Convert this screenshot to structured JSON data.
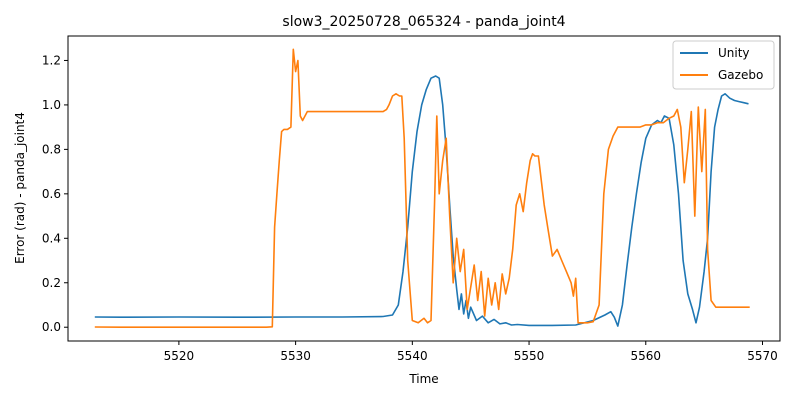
{
  "chart_data": {
    "type": "line",
    "title": "slow3_20250728_065324 - panda_joint4",
    "xlabel": "Time",
    "ylabel": "Error (rad) - panda_joint4",
    "xlim": [
      5510.5,
      5571.5
    ],
    "ylim": [
      -0.062,
      1.31
    ],
    "xticks": [
      5520,
      5530,
      5540,
      5550,
      5560,
      5570
    ],
    "yticks": [
      0.0,
      0.2,
      0.4,
      0.6,
      0.8,
      1.0,
      1.2
    ],
    "xtick_labels": [
      "5520",
      "5530",
      "5540",
      "5550",
      "5560",
      "5570"
    ],
    "ytick_labels": [
      "0.0",
      "0.2",
      "0.4",
      "0.6",
      "0.8",
      "1.0",
      "1.2"
    ],
    "grid": false,
    "legend": "top-right",
    "series": [
      {
        "name": "Unity",
        "color": "#1f77b4",
        "x": [
          5512.8,
          5515,
          5520,
          5525,
          5530,
          5534,
          5537.5,
          5538.3,
          5538.8,
          5539.2,
          5539.6,
          5540.0,
          5540.4,
          5540.8,
          5541.2,
          5541.6,
          5542.0,
          5542.3,
          5542.6,
          5542.9,
          5543.2,
          5543.5,
          5543.8,
          5544.0,
          5544.2,
          5544.4,
          5544.6,
          5544.8,
          5545.0,
          5545.5,
          5546.0,
          5546.5,
          5547.0,
          5547.5,
          5548.0,
          5548.5,
          5549.0,
          5550,
          5552,
          5554,
          5555.5,
          5556.5,
          5557.0,
          5557.3,
          5557.6,
          5558.0,
          5558.4,
          5558.8,
          5559.2,
          5559.6,
          5560.0,
          5560.5,
          5561.0,
          5561.3,
          5561.6,
          5562.0,
          5562.4,
          5562.8,
          5563.2,
          5563.6,
          5564.0,
          5564.3,
          5564.6,
          5565.0,
          5565.3,
          5565.6,
          5565.9,
          5566.2,
          5566.5,
          5566.8,
          5567.2,
          5567.6,
          5568.0,
          5568.4,
          5568.8
        ],
        "y": [
          0.046,
          0.045,
          0.046,
          0.045,
          0.046,
          0.046,
          0.048,
          0.055,
          0.1,
          0.25,
          0.45,
          0.7,
          0.88,
          1.0,
          1.07,
          1.12,
          1.13,
          1.12,
          1.0,
          0.8,
          0.55,
          0.32,
          0.17,
          0.08,
          0.15,
          0.06,
          0.12,
          0.04,
          0.09,
          0.03,
          0.05,
          0.02,
          0.035,
          0.015,
          0.02,
          0.01,
          0.012,
          0.008,
          0.008,
          0.01,
          0.03,
          0.055,
          0.07,
          0.045,
          0.005,
          0.1,
          0.28,
          0.45,
          0.6,
          0.74,
          0.85,
          0.91,
          0.93,
          0.92,
          0.95,
          0.94,
          0.82,
          0.6,
          0.3,
          0.15,
          0.08,
          0.02,
          0.09,
          0.25,
          0.4,
          0.7,
          0.9,
          0.98,
          1.04,
          1.05,
          1.03,
          1.02,
          1.015,
          1.01,
          1.005
        ]
      },
      {
        "name": "Gazebo",
        "color": "#ff7f0e",
        "x": [
          5512.8,
          5515,
          5520,
          5525,
          5527.5,
          5528.0,
          5528.2,
          5528.4,
          5528.6,
          5528.8,
          5529.0,
          5529.3,
          5529.6,
          5529.8,
          5530.0,
          5530.2,
          5530.4,
          5530.6,
          5531,
          5533,
          5536,
          5537.5,
          5537.8,
          5538.0,
          5538.3,
          5538.6,
          5538.9,
          5539.1,
          5539.3,
          5539.6,
          5540.0,
          5540.5,
          5541.0,
          5541.3,
          5541.6,
          5541.9,
          5542.1,
          5542.3,
          5542.6,
          5542.9,
          5543.2,
          5543.5,
          5543.8,
          5544.1,
          5544.4,
          5544.7,
          5545.0,
          5545.3,
          5545.6,
          5545.9,
          5546.2,
          5546.5,
          5546.8,
          5547.1,
          5547.4,
          5547.7,
          5548.0,
          5548.3,
          5548.6,
          5548.9,
          5549.2,
          5549.5,
          5549.8,
          5550.1,
          5550.3,
          5550.5,
          5550.8,
          5551.3,
          5551.6,
          5552.0,
          5552.4,
          5552.8,
          5553.2,
          5553.6,
          5553.8,
          5554.0,
          5554.2,
          5554.6,
          5555.0,
          5555.5,
          5556.0,
          5556.4,
          5556.8,
          5557.2,
          5557.6,
          5558.0,
          5558.5,
          5559.0,
          5559.5,
          5560.0,
          5560.5,
          5561.0,
          5561.5,
          5562.0,
          5562.4,
          5562.7,
          5563.0,
          5563.3,
          5563.6,
          5563.9,
          5564.2,
          5564.5,
          5564.8,
          5565.1,
          5565.3,
          5565.6,
          5566,
          5567,
          5568,
          5568.9
        ],
        "y": [
          0.001,
          0.0,
          0.0,
          0.0,
          0.0,
          0.002,
          0.45,
          0.6,
          0.75,
          0.88,
          0.89,
          0.89,
          0.9,
          1.25,
          1.15,
          1.2,
          0.95,
          0.93,
          0.97,
          0.97,
          0.97,
          0.97,
          0.98,
          1.0,
          1.04,
          1.05,
          1.04,
          1.04,
          0.85,
          0.3,
          0.03,
          0.02,
          0.04,
          0.02,
          0.03,
          0.55,
          0.95,
          0.6,
          0.75,
          0.85,
          0.5,
          0.2,
          0.4,
          0.25,
          0.35,
          0.08,
          0.18,
          0.28,
          0.12,
          0.25,
          0.05,
          0.22,
          0.1,
          0.2,
          0.08,
          0.24,
          0.15,
          0.22,
          0.35,
          0.55,
          0.6,
          0.52,
          0.65,
          0.75,
          0.78,
          0.77,
          0.77,
          0.55,
          0.45,
          0.32,
          0.35,
          0.3,
          0.25,
          0.2,
          0.14,
          0.22,
          0.02,
          0.02,
          0.02,
          0.025,
          0.1,
          0.6,
          0.8,
          0.86,
          0.9,
          0.9,
          0.9,
          0.9,
          0.9,
          0.91,
          0.91,
          0.92,
          0.92,
          0.94,
          0.95,
          0.98,
          0.9,
          0.65,
          0.8,
          0.97,
          0.5,
          0.99,
          0.7,
          0.98,
          0.35,
          0.12,
          0.09,
          0.09,
          0.09,
          0.09
        ]
      }
    ]
  }
}
